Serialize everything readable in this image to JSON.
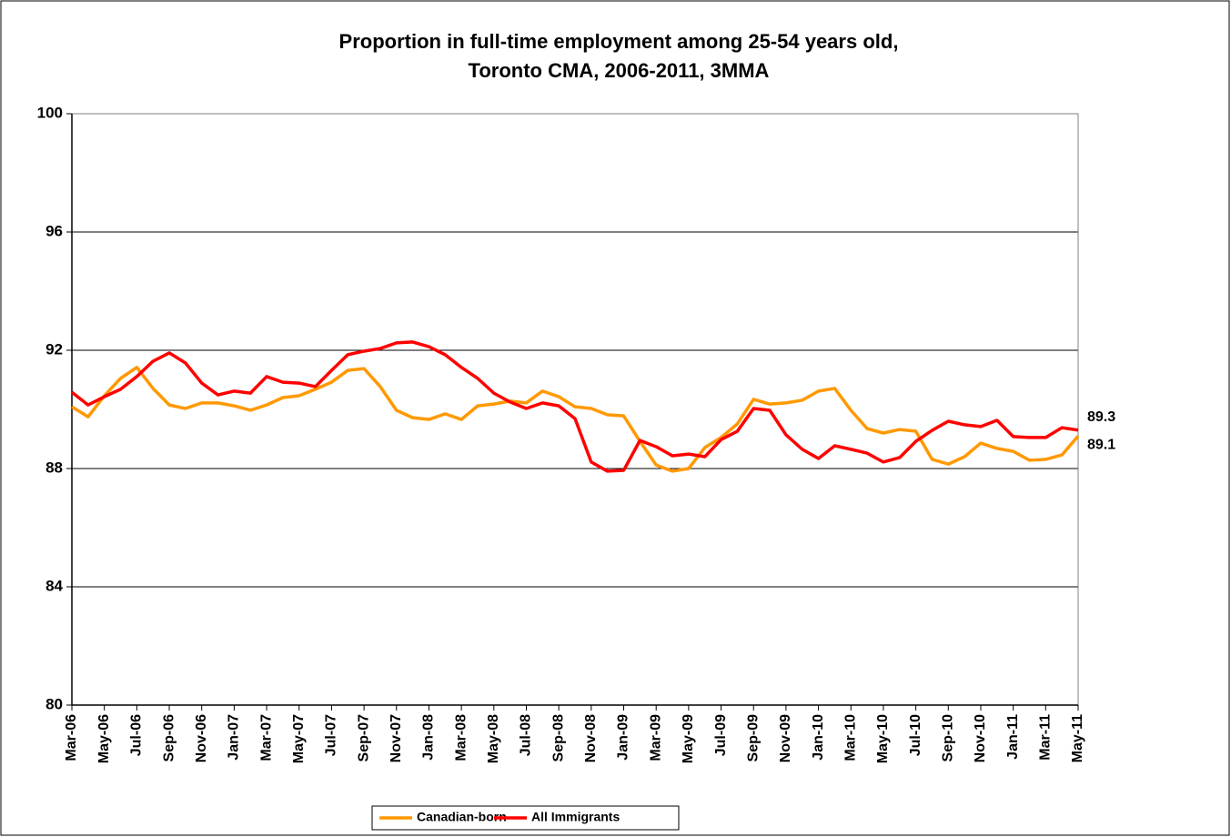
{
  "chart_data": {
    "type": "line",
    "title": "Proportion in full-time employment among 25-54 years old,\nToronto CMA, 2006-2011, 3MMA",
    "categories": [
      "Mar-06",
      null,
      "May-06",
      null,
      "Jul-06",
      null,
      "Sep-06",
      null,
      "Nov-06",
      null,
      "Jan-07",
      null,
      "Mar-07",
      null,
      "May-07",
      null,
      "Jul-07",
      null,
      "Sep-07",
      null,
      "Nov-07",
      null,
      "Jan-08",
      null,
      "Mar-08",
      null,
      "May-08",
      null,
      "Jul-08",
      null,
      "Sep-08",
      null,
      "Nov-08",
      null,
      "Jan-09",
      null,
      "Mar-09",
      null,
      "May-09",
      null,
      "Jul-09",
      null,
      "Sep-09",
      null,
      "Nov-09",
      null,
      "Jan-10",
      null,
      "Mar-10",
      null,
      "May-10",
      null,
      "Jul-10",
      null,
      "Sep-10",
      null,
      "Nov-10",
      null,
      "Jan-11",
      null,
      "Mar-11",
      null,
      "May-11"
    ],
    "series": [
      {
        "name": "Canadian-born",
        "color": "#FF9900",
        "values": [
          90.09,
          89.75,
          90.46,
          91.05,
          91.42,
          90.71,
          90.15,
          90.03,
          90.22,
          90.22,
          90.12,
          89.97,
          90.15,
          90.4,
          90.46,
          90.68,
          90.92,
          91.32,
          91.38,
          90.77,
          89.97,
          89.72,
          89.66,
          89.85,
          89.66,
          90.12,
          90.18,
          90.28,
          90.22,
          90.62,
          90.43,
          90.09,
          90.03,
          89.82,
          89.78,
          88.92,
          88.12,
          87.91,
          88.0,
          88.71,
          89.05,
          89.51,
          90.34,
          90.18,
          90.22,
          90.31,
          90.62,
          90.71,
          89.97,
          89.35,
          89.2,
          89.32,
          89.26,
          88.31,
          88.15,
          88.4,
          88.86,
          88.68,
          88.58,
          88.28,
          88.31,
          88.46,
          89.1
        ]
      },
      {
        "name": "All Immigrants",
        "color": "#FF0000",
        "values": [
          90.58,
          90.15,
          90.43,
          90.68,
          91.11,
          91.63,
          91.91,
          91.57,
          90.89,
          90.49,
          90.62,
          90.55,
          91.11,
          90.92,
          90.89,
          90.77,
          91.32,
          91.85,
          91.97,
          92.06,
          92.25,
          92.28,
          92.12,
          91.85,
          91.42,
          91.05,
          90.55,
          90.25,
          90.03,
          90.22,
          90.12,
          89.69,
          88.22,
          87.91,
          87.94,
          88.95,
          88.74,
          88.43,
          88.49,
          88.4,
          88.98,
          89.26,
          90.03,
          89.97,
          89.14,
          88.65,
          88.34,
          88.77,
          88.65,
          88.52,
          88.22,
          88.37,
          88.92,
          89.29,
          89.6,
          89.48,
          89.42,
          89.63,
          89.08,
          89.05,
          89.05,
          89.38,
          89.3
        ]
      }
    ],
    "ylim": [
      80,
      100
    ],
    "yticks": [
      80,
      84,
      88,
      92,
      96,
      100
    ],
    "grid": true,
    "legend": "bottom"
  }
}
